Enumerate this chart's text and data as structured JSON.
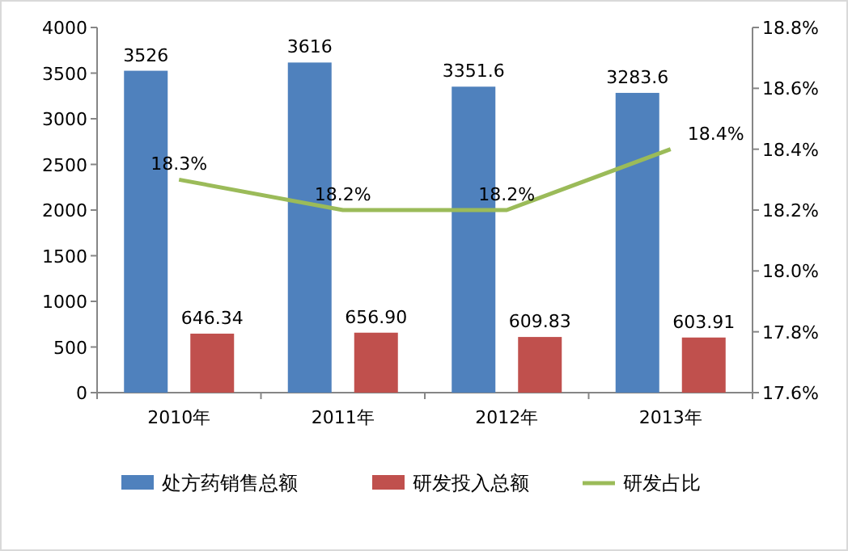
{
  "chart_data": {
    "type": "bar",
    "categories": [
      "2010年",
      "2011年",
      "2012年",
      "2013年"
    ],
    "series": [
      {
        "name": "处方药销售总额",
        "color": "#4f81bd",
        "values": [
          3526,
          3616,
          3351.6,
          3283.6
        ],
        "value_labels": [
          "3526",
          "3616",
          "3351.6",
          "3283.6"
        ]
      },
      {
        "name": "研发投入总额",
        "color": "#c0504d",
        "values": [
          646.34,
          656.9,
          609.83,
          603.91
        ],
        "value_labels": [
          "646.34",
          "656.90",
          "609.83",
          "603.91"
        ]
      },
      {
        "name": "研发占比",
        "type": "line",
        "axis": "y2",
        "color": "#9bbb59",
        "values": [
          18.3,
          18.2,
          18.2,
          18.4
        ],
        "value_labels": [
          "18.3%",
          "18.2%",
          "18.2%",
          "18.4%"
        ]
      }
    ],
    "ylim": [
      0,
      4000
    ],
    "yticks": [
      0,
      500,
      1000,
      1500,
      2000,
      2500,
      3000,
      3500,
      4000
    ],
    "y2lim": [
      17.6,
      18.8
    ],
    "y2ticks": [
      {
        "value": 17.6,
        "label": "17.6%"
      },
      {
        "value": 17.8,
        "label": "17.8%"
      },
      {
        "value": 18.0,
        "label": "18.0%"
      },
      {
        "value": 18.2,
        "label": "18.2%"
      },
      {
        "value": 18.4,
        "label": "18.4%"
      },
      {
        "value": 18.6,
        "label": "18.6%"
      },
      {
        "value": 18.8,
        "label": "18.8%"
      }
    ],
    "legend": "bottom",
    "marker": "none",
    "grid": false
  }
}
